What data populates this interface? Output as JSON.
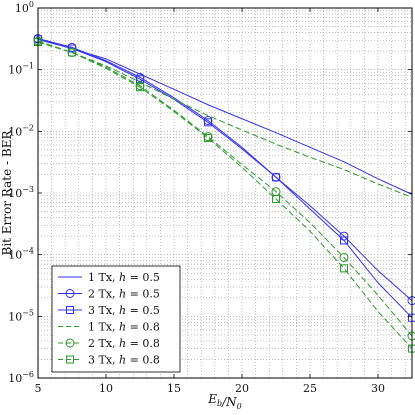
{
  "chart_data": {
    "type": "line",
    "x_scale": "linear",
    "y_scale": "log",
    "xlabel": "E_b/N_0",
    "ylabel": "Bit Error Rate - BER",
    "xlim": [
      5,
      32.5
    ],
    "ylim": [
      1e-06,
      1
    ],
    "x_ticks": [
      5,
      10,
      15,
      20,
      25,
      30
    ],
    "x_tick_labels": [
      "5",
      "10",
      "15",
      "20",
      "25",
      "30"
    ],
    "y_ticks": [
      1e-06,
      1e-05,
      0.0001,
      0.001,
      0.01,
      0.1,
      1
    ],
    "y_tick_labels": [
      {
        "base": "10",
        "exp": "−6"
      },
      {
        "base": "10",
        "exp": "−5"
      },
      {
        "base": "10",
        "exp": "−4"
      },
      {
        "base": "10",
        "exp": "−3"
      },
      {
        "base": "10",
        "exp": "−2"
      },
      {
        "base": "10",
        "exp": "−1"
      },
      {
        "base": "10",
        "exp": "0"
      }
    ],
    "grid": true,
    "legend_position": "bottom-left",
    "colors": {
      "blue": "#3333ee",
      "green": "#2d9a2d"
    },
    "series": [
      {
        "name": "1 Tx, h = 0.5",
        "name_parts": {
          "prefix": "1 Tx, ",
          "var": "h",
          "suffix": " = 0.5"
        },
        "color": "#3333ee",
        "dash": "solid",
        "marker": "none",
        "x": [
          5,
          7.5,
          10,
          12.5,
          15,
          17.5,
          20,
          22.5,
          25,
          27.5,
          30,
          32.5
        ],
        "y": [
          0.31,
          0.22,
          0.15,
          0.085,
          0.048,
          0.027,
          0.016,
          0.0095,
          0.0055,
          0.0032,
          0.0017,
          0.00095
        ]
      },
      {
        "name": "2 Tx, h = 0.5",
        "name_parts": {
          "prefix": "2 Tx, ",
          "var": "h",
          "suffix": " = 0.5"
        },
        "color": "#3333ee",
        "dash": "solid",
        "marker": "circle",
        "x": [
          5,
          7.5,
          10,
          12.5,
          15,
          17.5,
          20,
          22.5,
          25,
          27.5,
          30,
          32.5
        ],
        "y": [
          0.32,
          0.23,
          0.14,
          0.075,
          0.035,
          0.015,
          0.0055,
          0.0018,
          0.00062,
          0.0002,
          5.5e-05,
          1.8e-05
        ]
      },
      {
        "name": "3 Tx, h = 0.5",
        "name_parts": {
          "prefix": "3 Tx, ",
          "var": "h",
          "suffix": " = 0.5"
        },
        "color": "#3333ee",
        "dash": "solid",
        "marker": "square",
        "x": [
          5,
          7.5,
          10,
          12.5,
          15,
          17.5,
          20,
          22.5,
          25,
          27.5,
          30,
          32.5
        ],
        "y": [
          0.31,
          0.22,
          0.135,
          0.07,
          0.033,
          0.014,
          0.0052,
          0.0018,
          0.00055,
          0.00017,
          3.5e-05,
          9.5e-06
        ]
      },
      {
        "name": "1 Tx, h = 0.8",
        "name_parts": {
          "prefix": "1 Tx, ",
          "var": "h",
          "suffix": " = 0.8"
        },
        "color": "#2d9a2d",
        "dash": "dashed",
        "marker": "none",
        "x": [
          5,
          7.5,
          10,
          12.5,
          15,
          17.5,
          20,
          22.5,
          25,
          27.5,
          30,
          32.5
        ],
        "y": [
          0.29,
          0.19,
          0.115,
          0.063,
          0.033,
          0.018,
          0.0105,
          0.0062,
          0.0038,
          0.0024,
          0.0014,
          0.00085
        ]
      },
      {
        "name": "2 Tx, h = 0.8",
        "name_parts": {
          "prefix": "2 Tx, ",
          "var": "h",
          "suffix": " = 0.8"
        },
        "color": "#2d9a2d",
        "dash": "dashed",
        "marker": "circle",
        "x": [
          5,
          7.5,
          10,
          12.5,
          15,
          17.5,
          20,
          22.5,
          25,
          27.5,
          30,
          32.5
        ],
        "y": [
          0.29,
          0.19,
          0.11,
          0.055,
          0.022,
          0.0082,
          0.0029,
          0.00105,
          0.00033,
          9e-05,
          2.2e-05,
          4.8e-06
        ]
      },
      {
        "name": "3 Tx, h = 0.8",
        "name_parts": {
          "prefix": "3 Tx, ",
          "var": "h",
          "suffix": " = 0.8"
        },
        "color": "#2d9a2d",
        "dash": "dashed",
        "marker": "square",
        "x": [
          5,
          7.5,
          10,
          12.5,
          15,
          17.5,
          20,
          22.5,
          25,
          27.5,
          30,
          32.5
        ],
        "y": [
          0.28,
          0.19,
          0.105,
          0.052,
          0.021,
          0.0078,
          0.0026,
          0.0008,
          0.00024,
          6e-05,
          1.2e-05,
          3e-06
        ]
      }
    ]
  }
}
